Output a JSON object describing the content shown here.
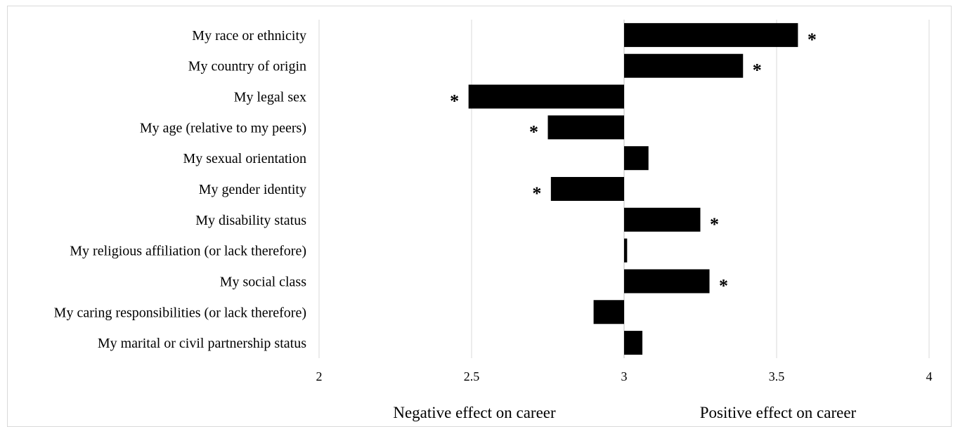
{
  "chart_data": {
    "type": "bar",
    "orientation": "horizontal",
    "baseline": 3,
    "title": "",
    "xlabel": "",
    "ylabel": "",
    "xlim": [
      2,
      4
    ],
    "x_ticks": [
      "2",
      "2.5",
      "3",
      "3.5",
      "4"
    ],
    "x_tick_values": [
      2,
      2.5,
      3,
      3.5,
      4
    ],
    "grid": "vertical",
    "legend": "none",
    "categories": [
      "My race or ethnicity",
      "My country of origin",
      "My legal sex",
      "My age (relative to my peers)",
      "My sexual orientation",
      "My gender identity",
      "My disability status",
      "My religious affiliation (or lack therefore)",
      "My social class",
      "My caring responsibilities (or lack therefore)",
      "My marital or civil partnership status"
    ],
    "values": [
      3.57,
      3.39,
      2.49,
      2.75,
      3.08,
      2.76,
      3.25,
      3.01,
      3.28,
      2.9,
      3.06
    ],
    "significant": [
      true,
      true,
      true,
      true,
      false,
      true,
      true,
      false,
      true,
      false,
      false
    ],
    "significance_marker": "*",
    "bar_color": "#000000",
    "annotations": {
      "negative": "Negative effect on career",
      "positive": "Positive effect on career"
    }
  }
}
